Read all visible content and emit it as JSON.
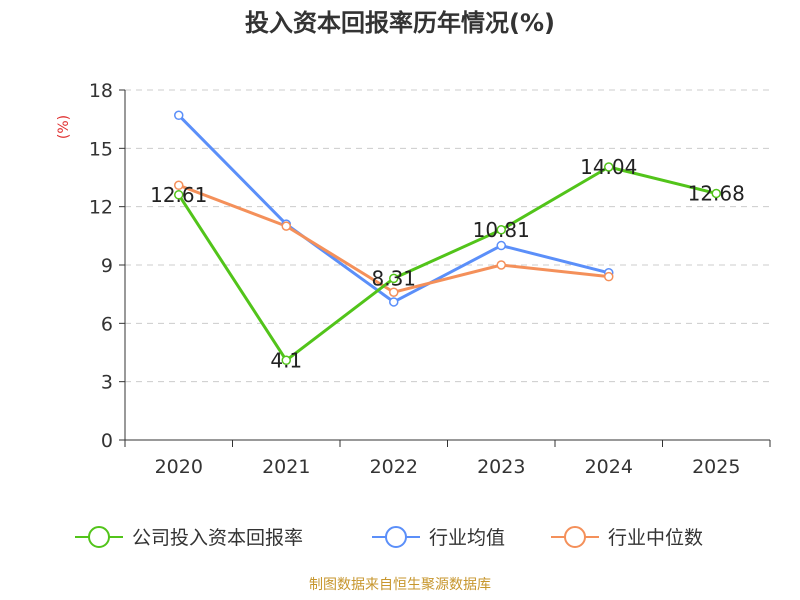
{
  "chart_data": {
    "type": "line",
    "title": "投入资本回报率历年情况(%)",
    "ylabel": "(%)",
    "categories": [
      "2020",
      "2021",
      "2022",
      "2023",
      "2024",
      "2025"
    ],
    "y_ticks": [
      "0",
      "3",
      "6",
      "9",
      "12",
      "15",
      "18"
    ],
    "ylim": [
      0,
      18
    ],
    "grid": "horizontal-dashed",
    "legend_position": "bottom",
    "series": [
      {
        "name": "公司投入资本回报率",
        "color": "#52c41a",
        "values": [
          12.61,
          4.1,
          8.31,
          10.81,
          14.04,
          12.68
        ],
        "labels": [
          "12.61",
          "4.1",
          "8.31",
          "10.81",
          "14.04",
          "12.68"
        ]
      },
      {
        "name": "行业均值",
        "color": "#5b8ff9",
        "values": [
          16.7,
          11.1,
          7.1,
          10.0,
          8.6,
          null
        ]
      },
      {
        "name": "行业中位数",
        "color": "#f4905a",
        "values": [
          13.1,
          11.0,
          7.6,
          9.0,
          8.4,
          null
        ]
      }
    ]
  },
  "source": "制图数据来自恒生聚源数据库"
}
